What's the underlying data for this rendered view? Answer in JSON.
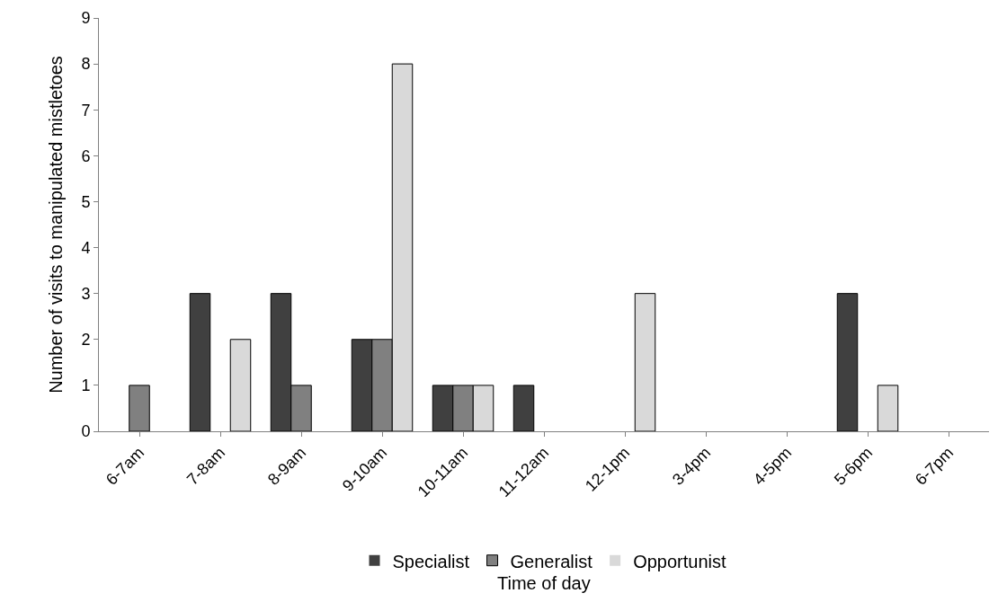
{
  "chart_data": {
    "type": "bar",
    "xlabel": "Time of day",
    "ylabel": "Number of visits to manipulated mistletoes",
    "categories": [
      "6-7am",
      "7-8am",
      "8-9am",
      "9-10am",
      "10-11am",
      "11-12am",
      "12-1pm",
      "3-4pm",
      "4-5pm",
      "5-6pm",
      "6-7pm"
    ],
    "series": [
      {
        "name": "Specialist",
        "color": "#404040",
        "values": [
          0,
          3,
          3,
          2,
          1,
          1,
          0,
          0,
          0,
          3,
          0
        ]
      },
      {
        "name": "Generalist",
        "color": "#808080",
        "values": [
          1,
          0,
          1,
          2,
          1,
          0,
          0,
          0,
          0,
          0,
          0
        ]
      },
      {
        "name": "Opportunist",
        "color": "#d9d9d9",
        "values": [
          0,
          2,
          0,
          8,
          1,
          0,
          3,
          0,
          0,
          1,
          0
        ]
      }
    ],
    "ylim": [
      0,
      9
    ],
    "yticks": [
      0,
      1,
      2,
      3,
      4,
      5,
      6,
      7,
      8,
      9
    ],
    "legend": "bottom"
  }
}
